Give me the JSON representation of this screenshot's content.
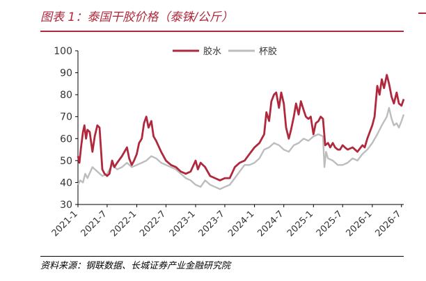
{
  "title": "图表 1：泰国干胶价格（泰铢/公斤）",
  "source": "资料来源：钢联数据、长城证券产业金融研究院",
  "chart_data": {
    "type": "line",
    "ylim": [
      30,
      100
    ],
    "yticks": [
      30,
      40,
      50,
      60,
      70,
      80,
      90,
      100
    ],
    "xticks": [
      "2021-1",
      "2021-7",
      "2022-1",
      "2022-7",
      "2023-1",
      "2023-7",
      "2024-1",
      "2024-7",
      "2025-1",
      "2025-7",
      "2026-1",
      "2026-7"
    ],
    "legend_position": "top-center",
    "series": [
      {
        "name": "胶水",
        "color": "#b0283c",
        "points": [
          [
            "2021-01-01",
            52
          ],
          [
            "2021-01-10",
            49
          ],
          [
            "2021-01-20",
            56
          ],
          [
            "2021-02-01",
            63
          ],
          [
            "2021-02-10",
            66
          ],
          [
            "2021-02-20",
            60
          ],
          [
            "2021-03-01",
            64
          ],
          [
            "2021-03-15",
            63
          ],
          [
            "2021-04-01",
            54
          ],
          [
            "2021-04-15",
            61
          ],
          [
            "2021-05-01",
            66
          ],
          [
            "2021-05-15",
            65
          ],
          [
            "2021-06-01",
            46
          ],
          [
            "2021-06-15",
            44
          ],
          [
            "2021-07-01",
            43
          ],
          [
            "2021-07-15",
            44
          ],
          [
            "2021-08-01",
            50
          ],
          [
            "2021-08-15",
            47
          ],
          [
            "2021-09-01",
            49
          ],
          [
            "2021-10-01",
            52
          ],
          [
            "2021-11-01",
            56
          ],
          [
            "2021-11-15",
            51
          ],
          [
            "2021-12-01",
            48
          ],
          [
            "2021-12-15",
            50
          ],
          [
            "2022-01-01",
            53
          ],
          [
            "2022-01-15",
            58
          ],
          [
            "2022-02-01",
            60
          ],
          [
            "2022-02-15",
            67
          ],
          [
            "2022-03-01",
            70
          ],
          [
            "2022-03-15",
            65
          ],
          [
            "2022-04-01",
            68
          ],
          [
            "2022-04-15",
            61
          ],
          [
            "2022-05-01",
            59
          ],
          [
            "2022-06-01",
            54
          ],
          [
            "2022-07-01",
            50
          ],
          [
            "2022-08-01",
            48
          ],
          [
            "2022-09-01",
            47
          ],
          [
            "2022-10-01",
            45
          ],
          [
            "2022-11-01",
            44
          ],
          [
            "2022-12-01",
            45
          ],
          [
            "2023-01-01",
            50
          ],
          [
            "2023-01-15",
            46
          ],
          [
            "2023-02-01",
            49
          ],
          [
            "2023-03-01",
            47
          ],
          [
            "2023-04-01",
            43
          ],
          [
            "2023-05-01",
            42
          ],
          [
            "2023-06-01",
            41
          ],
          [
            "2023-07-01",
            42
          ],
          [
            "2023-08-01",
            42
          ],
          [
            "2023-09-01",
            47
          ],
          [
            "2023-10-01",
            49
          ],
          [
            "2023-11-01",
            50
          ],
          [
            "2023-12-01",
            53
          ],
          [
            "2024-01-01",
            56
          ],
          [
            "2024-02-01",
            58
          ],
          [
            "2024-03-01",
            62
          ],
          [
            "2024-03-15",
            72
          ],
          [
            "2024-04-01",
            68
          ],
          [
            "2024-04-15",
            77
          ],
          [
            "2024-05-01",
            80
          ],
          [
            "2024-05-15",
            81
          ],
          [
            "2024-06-01",
            74
          ],
          [
            "2024-06-15",
            81
          ],
          [
            "2024-07-01",
            76
          ],
          [
            "2024-07-15",
            65
          ],
          [
            "2024-08-01",
            60
          ],
          [
            "2024-08-15",
            64
          ],
          [
            "2024-09-01",
            70
          ],
          [
            "2024-09-15",
            76
          ],
          [
            "2024-10-01",
            71
          ],
          [
            "2024-10-15",
            77
          ],
          [
            "2024-11-01",
            73
          ],
          [
            "2024-11-15",
            70
          ],
          [
            "2024-12-01",
            69
          ],
          [
            "2024-12-15",
            70
          ],
          [
            "2025-01-01",
            62
          ],
          [
            "2025-01-15",
            67
          ],
          [
            "2025-02-01",
            68
          ],
          [
            "2025-02-15",
            70
          ],
          [
            "2025-03-01",
            69
          ],
          [
            "2025-03-15",
            57
          ],
          [
            "2025-04-01",
            58
          ],
          [
            "2025-04-15",
            56
          ],
          [
            "2025-05-01",
            58
          ],
          [
            "2025-05-15",
            56
          ],
          [
            "2025-06-01",
            55
          ],
          [
            "2025-06-15",
            55
          ],
          [
            "2025-07-01",
            57
          ],
          [
            "2025-07-15",
            56
          ],
          [
            "2025-08-01",
            55
          ],
          [
            "2025-09-01",
            56
          ],
          [
            "2025-10-01",
            54
          ],
          [
            "2025-11-01",
            57
          ],
          [
            "2025-11-15",
            56
          ],
          [
            "2025-12-01",
            60
          ],
          [
            "2026-01-01",
            66
          ],
          [
            "2026-01-15",
            70
          ],
          [
            "2026-02-01",
            84
          ],
          [
            "2026-02-15",
            80
          ],
          [
            "2026-03-01",
            87
          ],
          [
            "2026-03-15",
            83
          ],
          [
            "2026-04-01",
            89
          ],
          [
            "2026-04-15",
            85
          ],
          [
            "2026-05-01",
            79
          ],
          [
            "2026-05-15",
            76
          ],
          [
            "2026-06-01",
            81
          ],
          [
            "2026-06-15",
            76
          ],
          [
            "2026-07-01",
            75
          ],
          [
            "2026-07-15",
            78
          ]
        ]
      },
      {
        "name": "杯胶",
        "color": "#bdbdbd",
        "points": [
          [
            "2021-01-01",
            39
          ],
          [
            "2021-01-15",
            41
          ],
          [
            "2021-02-01",
            40
          ],
          [
            "2021-02-15",
            44
          ],
          [
            "2021-03-01",
            42
          ],
          [
            "2021-04-01",
            47
          ],
          [
            "2021-05-01",
            45
          ],
          [
            "2021-06-01",
            43
          ],
          [
            "2021-07-01",
            44
          ],
          [
            "2021-08-01",
            48
          ],
          [
            "2021-09-01",
            46
          ],
          [
            "2021-10-01",
            47
          ],
          [
            "2021-11-01",
            49
          ],
          [
            "2021-12-01",
            47
          ],
          [
            "2022-01-01",
            48
          ],
          [
            "2022-02-01",
            49
          ],
          [
            "2022-03-01",
            50
          ],
          [
            "2022-04-01",
            52
          ],
          [
            "2022-05-01",
            51
          ],
          [
            "2022-06-01",
            49
          ],
          [
            "2022-07-01",
            48
          ],
          [
            "2022-08-01",
            47
          ],
          [
            "2022-09-01",
            46
          ],
          [
            "2022-10-01",
            44
          ],
          [
            "2022-11-01",
            42
          ],
          [
            "2022-12-01",
            41
          ],
          [
            "2023-01-01",
            39
          ],
          [
            "2023-02-01",
            38
          ],
          [
            "2023-03-01",
            41
          ],
          [
            "2023-04-01",
            39
          ],
          [
            "2023-05-01",
            38
          ],
          [
            "2023-06-01",
            37
          ],
          [
            "2023-07-01",
            38
          ],
          [
            "2023-08-01",
            39
          ],
          [
            "2023-09-01",
            42
          ],
          [
            "2023-10-01",
            45
          ],
          [
            "2023-11-01",
            48
          ],
          [
            "2023-12-01",
            48
          ],
          [
            "2024-01-01",
            49
          ],
          [
            "2024-02-01",
            51
          ],
          [
            "2024-03-01",
            55
          ],
          [
            "2024-04-01",
            56
          ],
          [
            "2024-05-01",
            58
          ],
          [
            "2024-06-01",
            57
          ],
          [
            "2024-07-01",
            55
          ],
          [
            "2024-08-01",
            54
          ],
          [
            "2024-09-01",
            57
          ],
          [
            "2024-10-01",
            58
          ],
          [
            "2024-11-01",
            60
          ],
          [
            "2024-12-01",
            59
          ],
          [
            "2025-01-01",
            61
          ],
          [
            "2025-02-01",
            62
          ],
          [
            "2025-03-01",
            61
          ],
          [
            "2025-03-10",
            47
          ],
          [
            "2025-03-20",
            54
          ],
          [
            "2025-04-01",
            51
          ],
          [
            "2025-05-01",
            50
          ],
          [
            "2025-06-01",
            48
          ],
          [
            "2025-07-01",
            48
          ],
          [
            "2025-08-01",
            49
          ],
          [
            "2025-09-01",
            51
          ],
          [
            "2025-10-01",
            50
          ],
          [
            "2025-11-01",
            53
          ],
          [
            "2025-12-01",
            55
          ],
          [
            "2026-01-01",
            58
          ],
          [
            "2026-02-01",
            62
          ],
          [
            "2026-03-01",
            66
          ],
          [
            "2026-04-01",
            70
          ],
          [
            "2026-04-15",
            74
          ],
          [
            "2026-05-01",
            69
          ],
          [
            "2026-05-15",
            66
          ],
          [
            "2026-06-01",
            67
          ],
          [
            "2026-06-15",
            65
          ],
          [
            "2026-07-01",
            68
          ],
          [
            "2026-07-15",
            71
          ]
        ]
      }
    ]
  }
}
